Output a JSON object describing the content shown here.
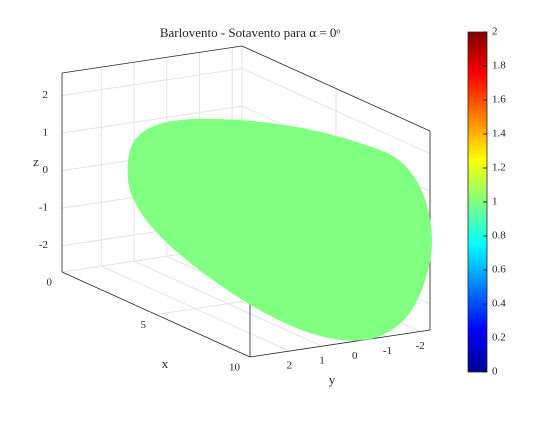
{
  "chart_data": {
    "type": "surface3d",
    "title": "Barlovento - Sotavento para α = 0ᵒ",
    "x_label": "x",
    "y_label": "y",
    "z_label": "z",
    "xlim": [
      0,
      10
    ],
    "ylim": [
      -2.3,
      3.2
    ],
    "zlim": [
      -2.7,
      2.6
    ],
    "xticks": [
      0,
      5,
      10
    ],
    "yticks": [
      -2,
      -1,
      0,
      1,
      2
    ],
    "zticks": [
      -2,
      -1,
      0,
      1,
      2
    ],
    "grid": true,
    "surface_value": 1,
    "colormap": "jet",
    "clim": [
      0,
      2
    ],
    "colorbar_ticks": [
      0,
      0.2,
      0.4,
      0.6,
      0.8,
      1,
      1.2,
      1.4,
      1.6,
      1.8,
      2
    ]
  }
}
